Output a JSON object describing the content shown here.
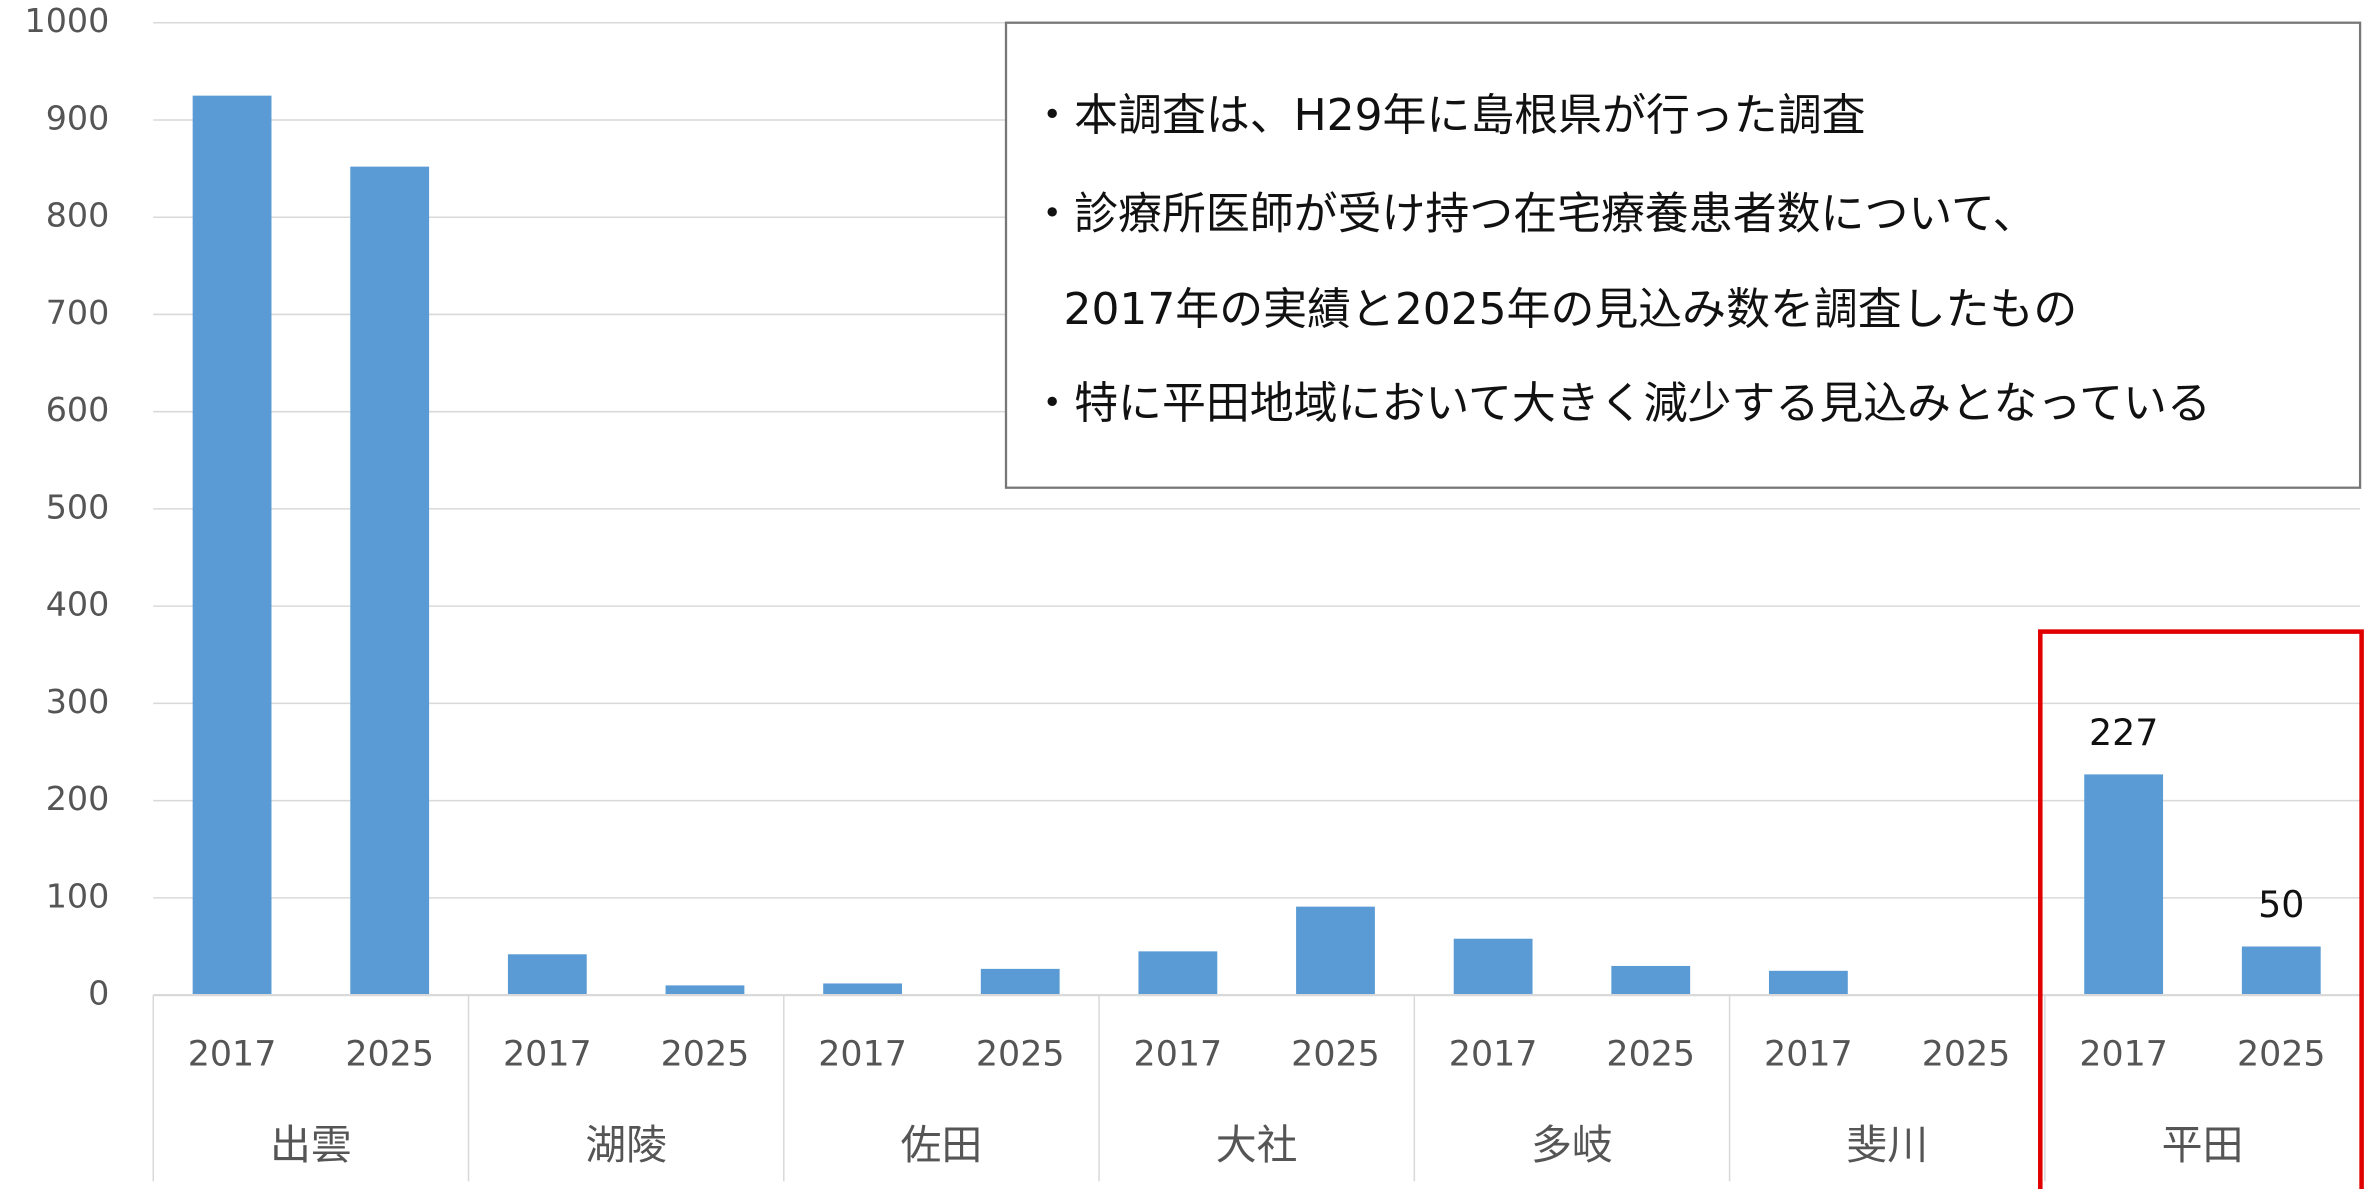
{
  "chart_data": {
    "type": "bar",
    "categories": [
      "2017",
      "2025",
      "2017",
      "2025",
      "2017",
      "2025",
      "2017",
      "2025",
      "2017",
      "2025",
      "2017",
      "2025",
      "2017",
      "2025"
    ],
    "groups": [
      "出雲",
      "湖陵",
      "佐田",
      "大社",
      "多岐",
      "斐川",
      "平田"
    ],
    "values": [
      925,
      852,
      42,
      10,
      12,
      27,
      45,
      91,
      58,
      30,
      25,
      1,
      227,
      50
    ],
    "value_labels": [
      null,
      null,
      null,
      null,
      null,
      null,
      null,
      null,
      null,
      null,
      null,
      null,
      "227",
      "50"
    ],
    "color": "#5b9bd5",
    "ylim": [
      0,
      1000
    ],
    "yticks": [
      0,
      100,
      200,
      300,
      400,
      500,
      600,
      700,
      800,
      900,
      1000
    ],
    "grid": true,
    "annotations": [
      "・本調査は、H29年に島根県が行った調査",
      "・診療所医師が受け持つ在宅療養患者数について、",
      "2017年の実績と2025年の見込み数を調査したもの",
      "・特に平田地域において大きく減少する見込みとなっている"
    ],
    "highlight": {
      "group": 6,
      "color": "#e00000"
    }
  }
}
